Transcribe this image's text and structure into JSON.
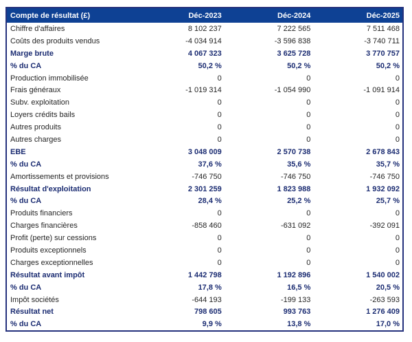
{
  "colors": {
    "header_bg": "#0E4194",
    "border_navy": "#24317C",
    "bold_text_navy": "#1B2C72",
    "body_text": "#242424"
  },
  "table": {
    "header": {
      "label": "Compte de résultat (£)",
      "columns": [
        "Déc-2023",
        "Déc-2024",
        "Déc-2025"
      ]
    },
    "rows": [
      {
        "label": "Chiffre d'affaires",
        "values": [
          "8 102 237",
          "7 222 565",
          "7 511 468"
        ],
        "bold": false
      },
      {
        "label": "Coûts des produits vendus",
        "values": [
          "-4 034 914",
          "-3 596 838",
          "-3 740 711"
        ],
        "bold": false
      },
      {
        "label": "Marge brute",
        "values": [
          "4 067 323",
          "3 625 728",
          "3 770 757"
        ],
        "bold": true
      },
      {
        "label": "% du CA",
        "values": [
          "50,2 %",
          "50,2 %",
          "50,2 %"
        ],
        "bold": true
      },
      {
        "label": "Production immobilisée",
        "values": [
          "0",
          "0",
          "0"
        ],
        "bold": false
      },
      {
        "label": "Frais généraux",
        "values": [
          "-1 019 314",
          "-1 054 990",
          "-1 091 914"
        ],
        "bold": false
      },
      {
        "label": "Subv. exploitation",
        "values": [
          "0",
          "0",
          "0"
        ],
        "bold": false
      },
      {
        "label": "Loyers crédits bails",
        "values": [
          "0",
          "0",
          "0"
        ],
        "bold": false
      },
      {
        "label": "Autres produits",
        "values": [
          "0",
          "0",
          "0"
        ],
        "bold": false
      },
      {
        "label": "Autres charges",
        "values": [
          "0",
          "0",
          "0"
        ],
        "bold": false
      },
      {
        "label": "EBE",
        "values": [
          "3 048 009",
          "2 570 738",
          "2 678 843"
        ],
        "bold": true
      },
      {
        "label": "% du CA",
        "values": [
          "37,6 %",
          "35,6 %",
          "35,7 %"
        ],
        "bold": true
      },
      {
        "label": "Amortissements et provisions",
        "values": [
          "-746 750",
          "-746 750",
          "-746 750"
        ],
        "bold": false
      },
      {
        "label": "Résultat d'exploitation",
        "values": [
          "2 301 259",
          "1 823 988",
          "1 932 092"
        ],
        "bold": true
      },
      {
        "label": "% du CA",
        "values": [
          "28,4 %",
          "25,2 %",
          "25,7 %"
        ],
        "bold": true
      },
      {
        "label": "Produits financiers",
        "values": [
          "0",
          "0",
          "0"
        ],
        "bold": false
      },
      {
        "label": "Charges financières",
        "values": [
          "-858 460",
          "-631 092",
          "-392 091"
        ],
        "bold": false
      },
      {
        "label": "Profit (perte) sur cessions",
        "values": [
          "0",
          "0",
          "0"
        ],
        "bold": false
      },
      {
        "label": "Produits exceptionnels",
        "values": [
          "0",
          "0",
          "0"
        ],
        "bold": false
      },
      {
        "label": "Charges exceptionnelles",
        "values": [
          "0",
          "0",
          "0"
        ],
        "bold": false
      },
      {
        "label": "Résultat avant impôt",
        "values": [
          "1 442 798",
          "1 192 896",
          "1 540 002"
        ],
        "bold": true
      },
      {
        "label": "% du CA",
        "values": [
          "17,8 %",
          "16,5 %",
          "20,5 %"
        ],
        "bold": true
      },
      {
        "label": "Impôt sociétés",
        "values": [
          "-644 193",
          "-199 133",
          "-263 593"
        ],
        "bold": false
      },
      {
        "label": "Résultat net",
        "values": [
          "798 605",
          "993 763",
          "1 276 409"
        ],
        "bold": true
      },
      {
        "label": "% du CA",
        "values": [
          "9,9 %",
          "13,8 %",
          "17,0 %"
        ],
        "bold": true
      }
    ]
  }
}
